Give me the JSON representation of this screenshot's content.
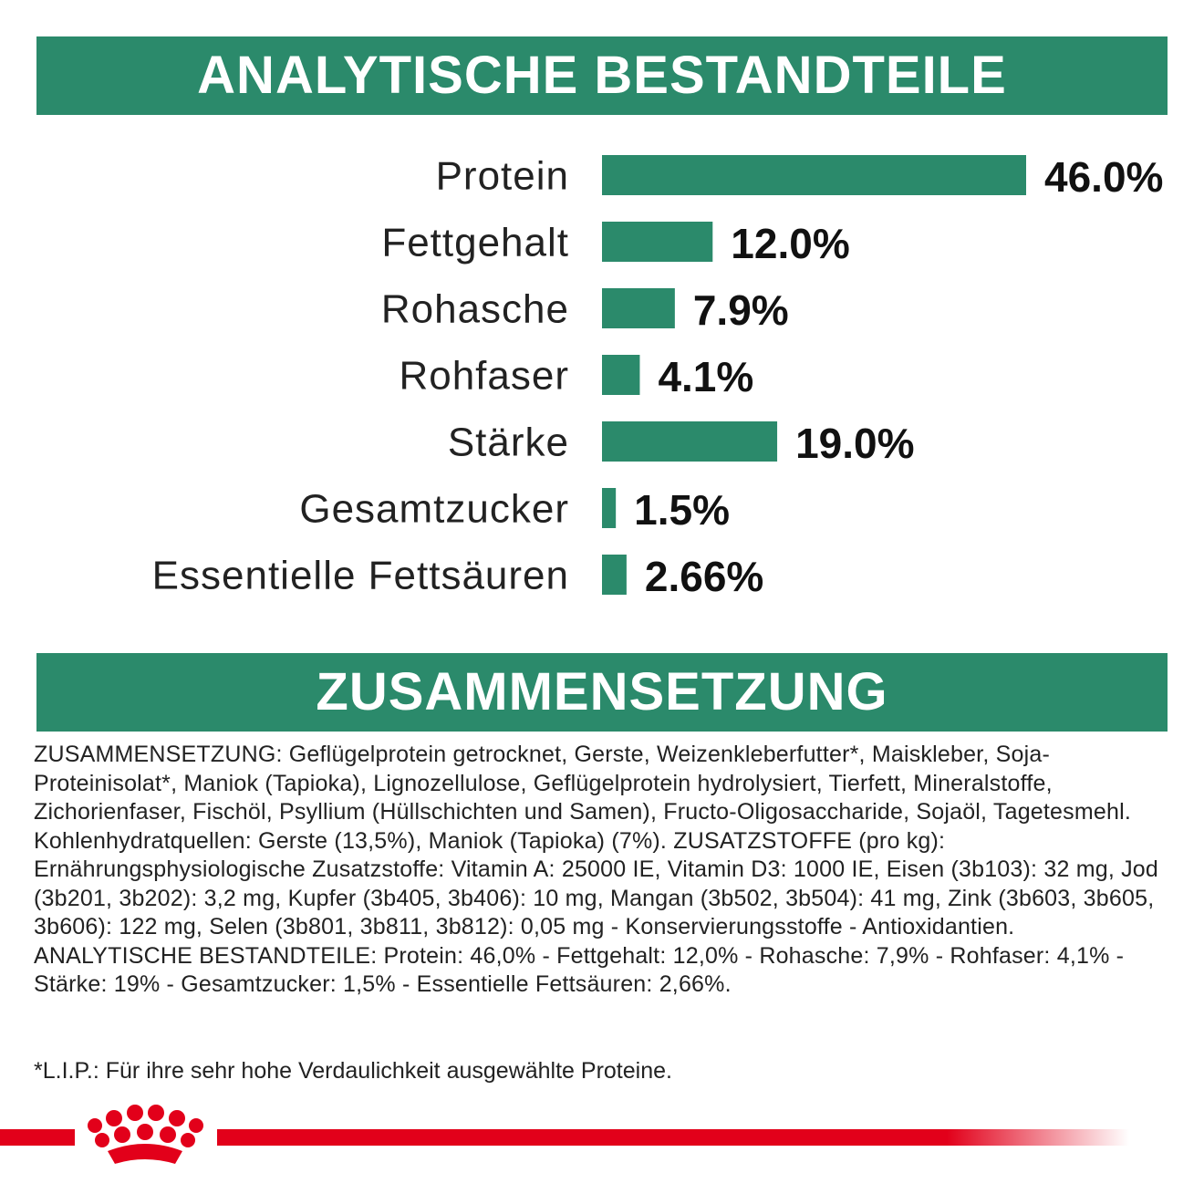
{
  "chart_data": {
    "type": "bar",
    "orientation": "horizontal",
    "title": "ANALYTISCHE BESTANDTEILE",
    "categories": [
      "Protein",
      "Fettgehalt",
      "Rohasche",
      "Rohfaser",
      "Stärke",
      "Gesamtzucker",
      "Essentielle Fettsäuren"
    ],
    "values": [
      46.0,
      12.0,
      7.9,
      4.1,
      19.0,
      1.5,
      2.66
    ],
    "value_labels": [
      "46.0%",
      "12.0%",
      "7.9%",
      "4.1%",
      "19.0%",
      "1.5%",
      "2.66%"
    ],
    "color": "#2b8a6b"
  },
  "composition": {
    "title": "ZUSAMMENSETZUNG",
    "text": "ZUSAMMENSETZUNG: Geflügelprotein getrocknet, Gerste, Weizenkleberfutter*, Maiskleber, Soja-Proteinisolat*, Maniok (Tapioka), Lignozellulose, Geflügelprotein hydrolysiert, Tierfett, Mineralstoffe, Zichorienfaser, Fischöl, Psyllium (Hüllschichten und Samen), Fructo-Oligosaccharide, Sojaöl, Tagetesmehl. Kohlenhydratquellen: Gerste (13,5%), Maniok (Tapioka) (7%). ZUSATZSTOFFE (pro kg): Ernährungsphysiologische Zusatzstoffe: Vitamin A: 25000 IE, Vitamin D3: 1000 IE, Eisen (3b103): 32 mg, Jod (3b201, 3b202): 3,2 mg, Kupfer (3b405, 3b406): 10 mg, Mangan (3b502, 3b504): 41 mg, Zink (3b603, 3b605, 3b606): 122 mg, Selen (3b801, 3b811, 3b812): 0,05 mg - Konservierungsstoffe - Antioxidantien. ANALYTISCHE BESTANDTEILE: Protein: 46,0% - Fettgehalt: 12,0% - Rohasche: 7,9% - Rohfaser: 4,1% - Stärke: 19% - Gesamtzucker: 1,5% - Essentielle Fettsäuren: 2,66%.",
    "footnote": "*L.I.P.: Für ihre sehr hohe Verdaulichkeit ausgewählte Proteine."
  }
}
